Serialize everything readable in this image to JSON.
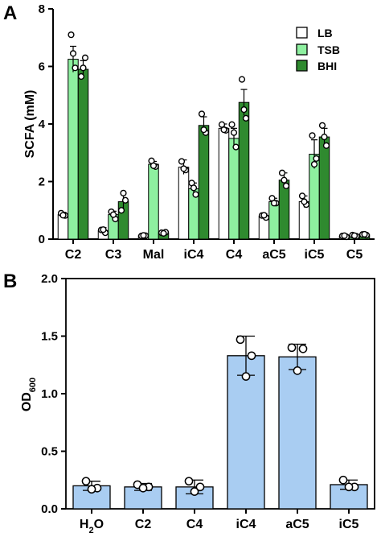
{
  "colors": {
    "LB": "#ffffff",
    "TSB": "#8ef0a0",
    "BHI": "#2f8a2f",
    "panel_b_bar": "#a9cdf2",
    "stroke": "#000000"
  },
  "chart_data": [
    {
      "panel": "A",
      "type": "bar",
      "ylabel": "SCFA (mM)",
      "xlabel": "",
      "ylim": [
        0,
        8
      ],
      "yticks": [
        "0",
        "2",
        "4",
        "6",
        "8"
      ],
      "categories": [
        "C2",
        "C3",
        "Mal",
        "iC4",
        "C4",
        "aC5",
        "iC5",
        "C5"
      ],
      "legend_position": "top-right",
      "series": [
        {
          "name": "LB",
          "values": [
            0.85,
            0.3,
            0.12,
            2.5,
            3.85,
            0.8,
            1.3,
            0.1
          ],
          "errors": [
            0.08,
            0.1,
            0.03,
            0.25,
            0.15,
            0.08,
            0.2,
            0.03
          ],
          "points": [
            [
              0.9,
              0.82,
              0.83
            ],
            [
              0.32,
              0.22,
              0.33
            ],
            [
              0.11,
              0.12,
              0.13
            ],
            [
              2.7,
              2.4,
              2.45
            ],
            [
              3.98,
              3.78,
              3.8
            ],
            [
              0.82,
              0.75,
              0.83
            ],
            [
              1.5,
              1.2,
              1.3
            ],
            [
              0.11,
              0.08,
              0.12
            ]
          ]
        },
        {
          "name": "TSB",
          "values": [
            6.25,
            0.85,
            2.6,
            1.75,
            3.5,
            1.3,
            2.95,
            0.12
          ],
          "errors": [
            0.45,
            0.12,
            0.1,
            0.2,
            0.35,
            0.12,
            0.5,
            0.03
          ],
          "points": [
            [
              7.1,
              5.95,
              6.45
            ],
            [
              0.95,
              0.7,
              0.85
            ],
            [
              2.72,
              2.52,
              2.55
            ],
            [
              1.95,
              1.55,
              1.78
            ],
            [
              3.98,
              3.2,
              3.7
            ],
            [
              1.42,
              1.25,
              1.25
            ],
            [
              3.6,
              2.8,
              2.6
            ],
            [
              0.14,
              0.1,
              0.12
            ]
          ]
        },
        {
          "name": "BHI",
          "values": [
            5.9,
            1.3,
            0.22,
            3.95,
            4.75,
            2.05,
            3.55,
            0.15
          ],
          "errors": [
            0.3,
            0.3,
            0.03,
            0.3,
            0.45,
            0.25,
            0.3,
            0.03
          ],
          "points": [
            [
              5.65,
              6.3,
              5.95
            ],
            [
              1.0,
              1.35,
              1.6
            ],
            [
              0.22,
              0.24,
              0.2
            ],
            [
              4.35,
              3.7,
              3.8
            ],
            [
              5.55,
              4.2,
              4.5
            ],
            [
              2.3,
              1.85,
              2.05
            ],
            [
              3.95,
              3.25,
              3.55
            ],
            [
              0.16,
              0.14,
              0.17
            ]
          ]
        }
      ]
    },
    {
      "panel": "B",
      "type": "bar",
      "ylabel": "OD600",
      "ylabel_main": "OD",
      "ylabel_sub": "600",
      "xlabel": "",
      "ylim": [
        0,
        2.0
      ],
      "yticks": [
        "0.0",
        "0.5",
        "1.0",
        "1.5",
        "2.0"
      ],
      "categories": [
        "H2O",
        "C2",
        "C4",
        "iC4",
        "aC5",
        "iC5"
      ],
      "category_labels": [
        {
          "main": "H",
          "sub": "2",
          "tail": "O"
        },
        {
          "main": "C2",
          "sub": "",
          "tail": ""
        },
        {
          "main": "C4",
          "sub": "",
          "tail": ""
        },
        {
          "main": "iC4",
          "sub": "",
          "tail": ""
        },
        {
          "main": "aC5",
          "sub": "",
          "tail": ""
        },
        {
          "main": "iC5",
          "sub": "",
          "tail": ""
        }
      ],
      "values": [
        0.2,
        0.19,
        0.19,
        1.33,
        1.32,
        0.21
      ],
      "errors": [
        0.04,
        0.03,
        0.06,
        0.17,
        0.11,
        0.04
      ],
      "points": [
        [
          0.24,
          0.18,
          0.17
        ],
        [
          0.21,
          0.19,
          0.18
        ],
        [
          0.24,
          0.19,
          0.15
        ],
        [
          1.47,
          1.33,
          1.15
        ],
        [
          1.4,
          1.39,
          1.2
        ],
        [
          0.25,
          0.19,
          0.19
        ]
      ]
    }
  ]
}
